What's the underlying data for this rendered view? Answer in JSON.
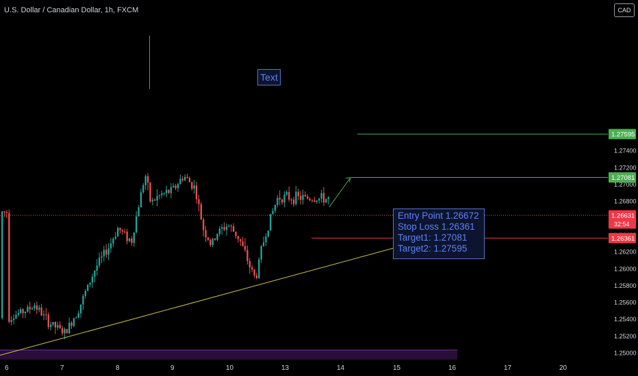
{
  "header": {
    "title": "U.S. Dollar / Canadian Dollar, 1h, FXCM",
    "currency": "CAD"
  },
  "drawings": {
    "text_tool_label": "Text",
    "note_lines": [
      "Entry Point 1.26672",
      "Stop Loss 1.26361",
      "Target1: 1.27081",
      "Target2: 1.27595"
    ]
  },
  "price_tags": {
    "target2": "1.27595",
    "target1": "1.27081",
    "last": "1.26631",
    "countdown": "32:54",
    "stop": "1.26361"
  },
  "colors": {
    "background": "#000000",
    "bull": "#26a69a",
    "bear": "#ef5350",
    "target_line": "#4caf50",
    "stop_line": "#f23645",
    "trendline": "#d4c548",
    "last_price_line": "#ef5350",
    "note_text": "#5c83f2"
  },
  "chart_data": {
    "type": "candlestick",
    "title": "U.S. Dollar / Canadian Dollar, 1h, FXCM",
    "y_axis": {
      "ticks": [
        "1.27600",
        "1.27400",
        "1.27200",
        "1.27000",
        "1.26800",
        "1.26600",
        "1.26400",
        "1.26200",
        "1.26000",
        "1.25800",
        "1.25600",
        "1.25400",
        "1.25200",
        "1.25000"
      ],
      "range": [
        1.2494,
        1.2782
      ]
    },
    "x_axis": {
      "ticks": [
        "6",
        "7",
        "8",
        "9",
        "10",
        "13",
        "14",
        "15",
        "16",
        "17",
        "20"
      ]
    },
    "levels": {
      "target2": 1.27595,
      "target1": 1.27081,
      "entry": 1.26672,
      "stop": 1.26361,
      "last": 1.26631
    },
    "trendline": {
      "from": [
        "6",
        1.2497
      ],
      "to": [
        "15.7",
        1.2637
      ]
    },
    "projection_arrow": {
      "from": [
        "13.8",
        1.2673
      ],
      "to": [
        "14.2",
        1.2708
      ]
    },
    "ohlc_path": [
      [
        "6",
        1.2541
      ],
      [
        "6.4",
        1.2552
      ],
      [
        "6.5",
        1.2557
      ],
      [
        "6.75",
        1.2536
      ],
      [
        "7.05",
        1.2523
      ],
      [
        "7.3",
        1.2553
      ],
      [
        "7.6",
        1.2601
      ],
      [
        "7.85",
        1.2627
      ],
      [
        "8.0",
        1.2648
      ],
      [
        "8.25",
        1.2632
      ],
      [
        "8.4",
        1.2682
      ],
      [
        "8.5",
        1.2712
      ],
      [
        "8.6",
        1.2678
      ],
      [
        "8.75",
        1.2686
      ],
      [
        "9.0",
        1.2693
      ],
      [
        "9.2",
        1.271
      ],
      [
        "9.4",
        1.2696
      ],
      [
        "9.55",
        1.2648
      ],
      [
        "9.7",
        1.2627
      ],
      [
        "9.8",
        1.2642
      ],
      [
        "10.0",
        1.2652
      ],
      [
        "10.2",
        1.2636
      ],
      [
        "10.4",
        1.2601
      ],
      [
        "10.5",
        1.2587
      ],
      [
        "10.6",
        1.2623
      ],
      [
        "10.75",
        1.2657
      ],
      [
        "10.9",
        1.2685
      ],
      [
        "12.0",
        1.2682
      ],
      [
        "13.2",
        1.2688
      ],
      [
        "13.4",
        1.2673
      ],
      [
        "13.55",
        1.267
      ],
      [
        "13.65",
        1.2643
      ],
      [
        "13.75",
        1.2661
      ],
      [
        "13.8",
        1.2667
      ]
    ]
  }
}
